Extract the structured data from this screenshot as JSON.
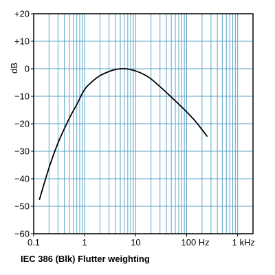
{
  "chart_data": {
    "type": "line",
    "title": "IEC 386 (Blk) Flutter weighting",
    "xlabel": "",
    "ylabel": "dB",
    "xscale": "log",
    "xlim": [
      0.1,
      2000
    ],
    "ylim": [
      -60,
      20
    ],
    "grid": true,
    "legend": "none",
    "x_tick_labels": [
      {
        "value": 0.1,
        "label": "0.1"
      },
      {
        "value": 1,
        "label": "1"
      },
      {
        "value": 10,
        "label": "10"
      },
      {
        "value": 100,
        "label": "100 Hz"
      },
      {
        "value": 1000,
        "label": "1 kHz"
      }
    ],
    "y_tick_labels": [
      {
        "value": 20,
        "label": "+20"
      },
      {
        "value": 10,
        "label": "+10"
      },
      {
        "value": 0,
        "label": "0"
      },
      {
        "value": -10,
        "label": "−10"
      },
      {
        "value": -20,
        "label": "−20"
      },
      {
        "value": -30,
        "label": "−30"
      },
      {
        "value": -40,
        "label": "−40"
      },
      {
        "value": -50,
        "label": "−50"
      },
      {
        "value": -60,
        "label": "−60"
      }
    ],
    "series": [
      {
        "x": [
          0.13,
          0.2,
          0.3,
          0.5,
          0.7,
          1,
          1.5,
          2,
          3,
          4,
          5,
          6,
          7,
          10,
          15,
          20,
          30,
          50,
          100,
          150,
          250
        ],
        "y": [
          -47.5,
          -36,
          -27,
          -18,
          -13,
          -7.5,
          -4.2,
          -2.5,
          -1,
          -0.3,
          0,
          0,
          -0.1,
          -0.8,
          -2.2,
          -3.7,
          -6.5,
          -10.3,
          -15.7,
          -19.2,
          -24.5
        ]
      }
    ],
    "colors": {
      "grid": "#5aa4c8",
      "frame": "#000000",
      "line": "#000000",
      "background": "#ffffff"
    }
  }
}
